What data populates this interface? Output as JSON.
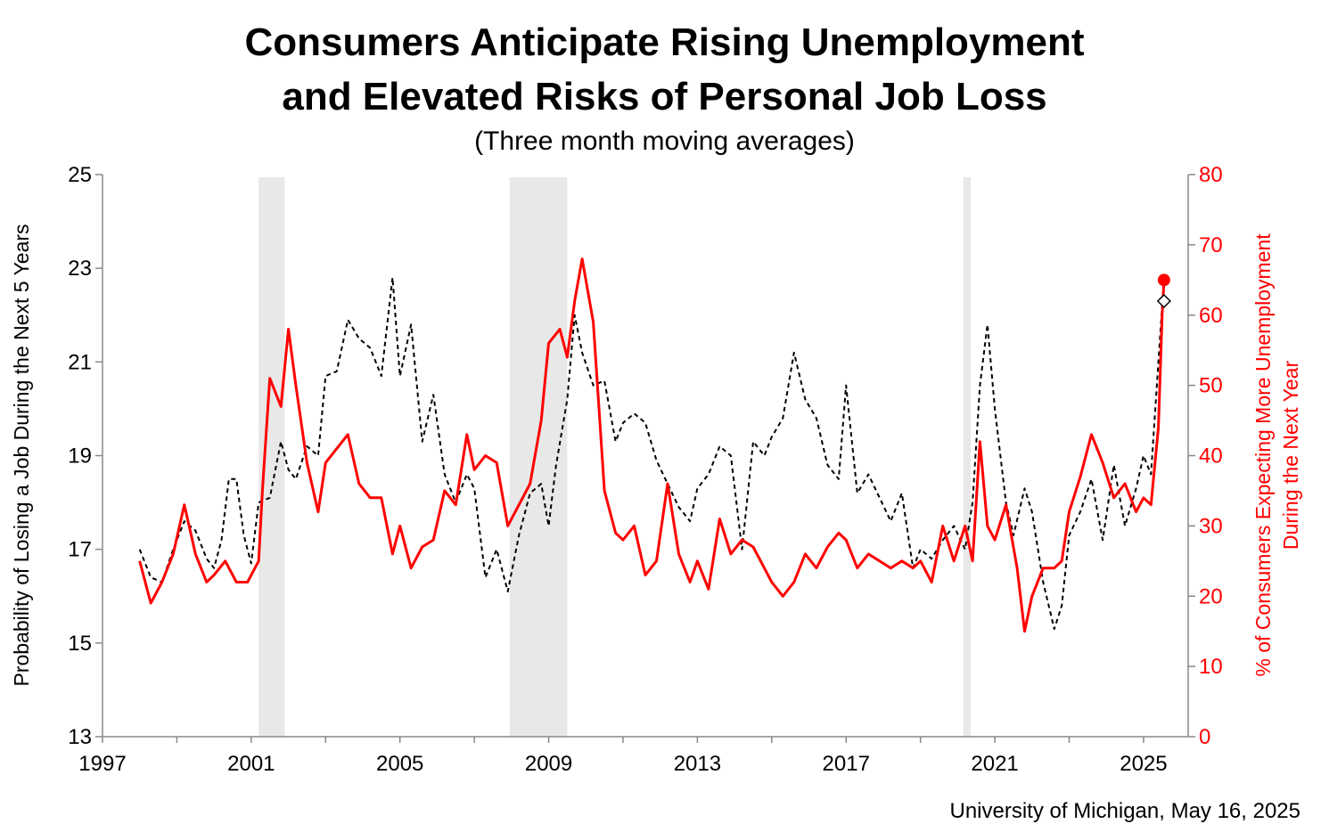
{
  "title_line1": "Consumers Anticipate Rising Unemployment",
  "title_line2": "and Elevated Risks of Personal Job Loss",
  "subtitle": "(Three month moving averages)",
  "source": "University of Michigan, May 16, 2025",
  "colors": {
    "job_loss": "#000000",
    "unemployment": "#ff0000",
    "recession": "#e8e8e8"
  },
  "chart_data": {
    "type": "line",
    "x_ticks": [
      "1997",
      "2001",
      "2005",
      "2009",
      "2013",
      "2017",
      "2021",
      "2025"
    ],
    "xlim": [
      1997,
      2026.2
    ],
    "left_axis": {
      "label": "Probability of Losing a Job During the Next 5 Years",
      "ylim": [
        13,
        25
      ],
      "ticks": [
        "13",
        "15",
        "17",
        "19",
        "21",
        "23",
        "25"
      ]
    },
    "right_axis": {
      "label_line1": "% of Consumers Expecting More Unemployment",
      "label_line2": "During the Next Year",
      "ylim": [
        0,
        80
      ],
      "ticks": [
        "0",
        "10",
        "20",
        "30",
        "40",
        "50",
        "60",
        "70",
        "80"
      ]
    },
    "recessions": [
      [
        2001.2,
        2001.9
      ],
      [
        2007.95,
        2009.5
      ],
      [
        2020.15,
        2020.35
      ]
    ],
    "series": [
      {
        "axis": "left",
        "style": "dashed",
        "color": "#000000",
        "points": [
          [
            1998.0,
            17.0
          ],
          [
            1998.3,
            16.4
          ],
          [
            1998.6,
            16.3
          ],
          [
            1998.9,
            17.0
          ],
          [
            1999.2,
            17.6
          ],
          [
            1999.5,
            17.4
          ],
          [
            1999.8,
            16.8
          ],
          [
            2000.0,
            16.6
          ],
          [
            2000.2,
            17.2
          ],
          [
            2000.4,
            18.5
          ],
          [
            2000.6,
            18.5
          ],
          [
            2000.8,
            17.3
          ],
          [
            2001.0,
            16.7
          ],
          [
            2001.2,
            18.0
          ],
          [
            2001.5,
            18.1
          ],
          [
            2001.8,
            19.3
          ],
          [
            2002.0,
            18.7
          ],
          [
            2002.2,
            18.5
          ],
          [
            2002.5,
            19.2
          ],
          [
            2002.8,
            19.0
          ],
          [
            2003.0,
            20.7
          ],
          [
            2003.3,
            20.8
          ],
          [
            2003.6,
            21.9
          ],
          [
            2003.9,
            21.5
          ],
          [
            2004.2,
            21.3
          ],
          [
            2004.5,
            20.7
          ],
          [
            2004.8,
            22.8
          ],
          [
            2005.0,
            20.7
          ],
          [
            2005.3,
            21.8
          ],
          [
            2005.6,
            19.3
          ],
          [
            2005.9,
            20.3
          ],
          [
            2006.2,
            18.6
          ],
          [
            2006.5,
            18.0
          ],
          [
            2006.8,
            18.6
          ],
          [
            2007.0,
            18.3
          ],
          [
            2007.3,
            16.4
          ],
          [
            2007.6,
            17.0
          ],
          [
            2007.9,
            16.1
          ],
          [
            2008.2,
            17.3
          ],
          [
            2008.5,
            18.2
          ],
          [
            2008.8,
            18.4
          ],
          [
            2009.0,
            17.5
          ],
          [
            2009.2,
            18.8
          ],
          [
            2009.5,
            20.2
          ],
          [
            2009.7,
            22.0
          ],
          [
            2009.9,
            21.2
          ],
          [
            2010.2,
            20.5
          ],
          [
            2010.5,
            20.6
          ],
          [
            2010.8,
            19.3
          ],
          [
            2011.0,
            19.7
          ],
          [
            2011.3,
            19.9
          ],
          [
            2011.6,
            19.7
          ],
          [
            2011.9,
            18.9
          ],
          [
            2012.2,
            18.4
          ],
          [
            2012.5,
            17.9
          ],
          [
            2012.8,
            17.6
          ],
          [
            2013.0,
            18.3
          ],
          [
            2013.3,
            18.6
          ],
          [
            2013.6,
            19.2
          ],
          [
            2013.9,
            19.0
          ],
          [
            2014.2,
            17.0
          ],
          [
            2014.5,
            19.3
          ],
          [
            2014.8,
            19.0
          ],
          [
            2015.0,
            19.4
          ],
          [
            2015.3,
            19.8
          ],
          [
            2015.6,
            21.2
          ],
          [
            2015.9,
            20.2
          ],
          [
            2016.2,
            19.8
          ],
          [
            2016.5,
            18.8
          ],
          [
            2016.8,
            18.5
          ],
          [
            2017.0,
            20.5
          ],
          [
            2017.3,
            18.2
          ],
          [
            2017.6,
            18.6
          ],
          [
            2017.9,
            18.1
          ],
          [
            2018.2,
            17.6
          ],
          [
            2018.5,
            18.2
          ],
          [
            2018.8,
            16.6
          ],
          [
            2019.0,
            17.0
          ],
          [
            2019.3,
            16.8
          ],
          [
            2019.6,
            17.2
          ],
          [
            2019.9,
            17.5
          ],
          [
            2020.2,
            17.0
          ],
          [
            2020.4,
            18.0
          ],
          [
            2020.6,
            20.5
          ],
          [
            2020.8,
            21.8
          ],
          [
            2021.0,
            20.0
          ],
          [
            2021.3,
            18.0
          ],
          [
            2021.5,
            17.3
          ],
          [
            2021.8,
            18.3
          ],
          [
            2022.0,
            17.8
          ],
          [
            2022.3,
            16.3
          ],
          [
            2022.6,
            15.3
          ],
          [
            2022.8,
            15.8
          ],
          [
            2023.0,
            17.3
          ],
          [
            2023.3,
            17.8
          ],
          [
            2023.6,
            18.5
          ],
          [
            2023.9,
            17.2
          ],
          [
            2024.2,
            18.8
          ],
          [
            2024.5,
            17.5
          ],
          [
            2024.8,
            18.3
          ],
          [
            2025.0,
            19.0
          ],
          [
            2025.2,
            18.6
          ],
          [
            2025.4,
            21.0
          ],
          [
            2025.5,
            22.2
          ]
        ]
      },
      {
        "axis": "right",
        "style": "solid",
        "color": "#ff0000",
        "points": [
          [
            1998.0,
            25
          ],
          [
            1998.3,
            19
          ],
          [
            1998.6,
            22
          ],
          [
            1998.9,
            26
          ],
          [
            1999.2,
            33
          ],
          [
            1999.5,
            26
          ],
          [
            1999.8,
            22
          ],
          [
            2000.0,
            23
          ],
          [
            2000.3,
            25
          ],
          [
            2000.6,
            22
          ],
          [
            2000.9,
            22
          ],
          [
            2001.2,
            25
          ],
          [
            2001.3,
            35
          ],
          [
            2001.5,
            51
          ],
          [
            2001.8,
            47
          ],
          [
            2002.0,
            58
          ],
          [
            2002.2,
            50
          ],
          [
            2002.5,
            39
          ],
          [
            2002.8,
            32
          ],
          [
            2003.0,
            39
          ],
          [
            2003.3,
            41
          ],
          [
            2003.6,
            43
          ],
          [
            2003.9,
            36
          ],
          [
            2004.2,
            34
          ],
          [
            2004.5,
            34
          ],
          [
            2004.8,
            26
          ],
          [
            2005.0,
            30
          ],
          [
            2005.3,
            24
          ],
          [
            2005.6,
            27
          ],
          [
            2005.9,
            28
          ],
          [
            2006.2,
            35
          ],
          [
            2006.5,
            33
          ],
          [
            2006.8,
            43
          ],
          [
            2007.0,
            38
          ],
          [
            2007.3,
            40
          ],
          [
            2007.6,
            39
          ],
          [
            2007.9,
            30
          ],
          [
            2008.2,
            33
          ],
          [
            2008.5,
            36
          ],
          [
            2008.8,
            45
          ],
          [
            2009.0,
            56
          ],
          [
            2009.3,
            58
          ],
          [
            2009.5,
            54
          ],
          [
            2009.7,
            62
          ],
          [
            2009.9,
            68
          ],
          [
            2010.2,
            59
          ],
          [
            2010.5,
            35
          ],
          [
            2010.8,
            29
          ],
          [
            2011.0,
            28
          ],
          [
            2011.3,
            30
          ],
          [
            2011.6,
            23
          ],
          [
            2011.9,
            25
          ],
          [
            2012.2,
            36
          ],
          [
            2012.5,
            26
          ],
          [
            2012.8,
            22
          ],
          [
            2013.0,
            25
          ],
          [
            2013.3,
            21
          ],
          [
            2013.6,
            31
          ],
          [
            2013.9,
            26
          ],
          [
            2014.2,
            28
          ],
          [
            2014.5,
            27
          ],
          [
            2014.8,
            24
          ],
          [
            2015.0,
            22
          ],
          [
            2015.3,
            20
          ],
          [
            2015.6,
            22
          ],
          [
            2015.9,
            26
          ],
          [
            2016.2,
            24
          ],
          [
            2016.5,
            27
          ],
          [
            2016.8,
            29
          ],
          [
            2017.0,
            28
          ],
          [
            2017.3,
            24
          ],
          [
            2017.6,
            26
          ],
          [
            2017.9,
            25
          ],
          [
            2018.2,
            24
          ],
          [
            2018.5,
            25
          ],
          [
            2018.8,
            24
          ],
          [
            2019.0,
            25
          ],
          [
            2019.3,
            22
          ],
          [
            2019.6,
            30
          ],
          [
            2019.9,
            25
          ],
          [
            2020.2,
            30
          ],
          [
            2020.4,
            25
          ],
          [
            2020.6,
            42
          ],
          [
            2020.8,
            30
          ],
          [
            2021.0,
            28
          ],
          [
            2021.3,
            33
          ],
          [
            2021.6,
            24
          ],
          [
            2021.8,
            15
          ],
          [
            2022.0,
            20
          ],
          [
            2022.3,
            24
          ],
          [
            2022.6,
            24
          ],
          [
            2022.8,
            25
          ],
          [
            2023.0,
            32
          ],
          [
            2023.3,
            37
          ],
          [
            2023.6,
            43
          ],
          [
            2023.9,
            39
          ],
          [
            2024.2,
            34
          ],
          [
            2024.5,
            36
          ],
          [
            2024.8,
            32
          ],
          [
            2025.0,
            34
          ],
          [
            2025.2,
            33
          ],
          [
            2025.4,
            44
          ],
          [
            2025.5,
            60
          ],
          [
            2025.55,
            65
          ]
        ]
      }
    ],
    "markers": [
      {
        "series": 0,
        "shape": "diamond",
        "x": 2025.55,
        "y": 22.3
      },
      {
        "series": 1,
        "shape": "circle",
        "x": 2025.55,
        "y": 65
      }
    ]
  }
}
